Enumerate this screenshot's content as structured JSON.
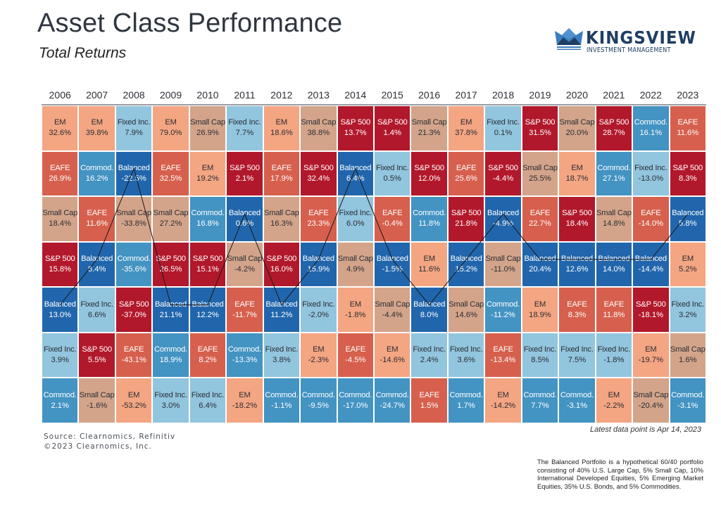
{
  "header": {
    "title": "Asset Class Performance",
    "subtitle": "Total Returns"
  },
  "logo": {
    "name": "KINGSVIEW",
    "tagline": "INVESTMENT MANAGEMENT",
    "icon": "crown-icon",
    "colors": {
      "light": "#3b7dbf",
      "dark": "#1f3e63"
    }
  },
  "colors": {
    "EM": "#f4a582",
    "EAFE": "#d6604d",
    "Small Cap": "#d3a48a",
    "S&P 500": "#b2182b",
    "Balanced": "#2166ac",
    "Fixed Inc.": "#92c5de",
    "Commod.": "#4393c3"
  },
  "dark_text_classes": [
    "EAFE",
    "S&P 500",
    "Balanced",
    "Commod."
  ],
  "chart_data": {
    "type": "table",
    "title": "Asset Class Performance",
    "subtitle": "Total Returns",
    "years": [
      "2006",
      "2007",
      "2008",
      "2009",
      "2010",
      "2011",
      "2012",
      "2013",
      "2014",
      "2015",
      "2016",
      "2017",
      "2018",
      "2019",
      "2020",
      "2021",
      "2022",
      "2023"
    ],
    "rank_order": "descending return, top row = best",
    "columns": [
      [
        [
          "EM",
          "32.6%"
        ],
        [
          "EAFE",
          "26.9%"
        ],
        [
          "Small Cap",
          "18.4%"
        ],
        [
          "S&P 500",
          "15.8%"
        ],
        [
          "Balanced",
          "13.0%"
        ],
        [
          "Fixed Inc.",
          "3.9%"
        ],
        [
          "Commod.",
          "2.1%"
        ]
      ],
      [
        [
          "EM",
          "39.8%"
        ],
        [
          "Commod.",
          "16.2%"
        ],
        [
          "EAFE",
          "11.6%"
        ],
        [
          "Balanced",
          "8.4%"
        ],
        [
          "Fixed Inc.",
          "6.6%"
        ],
        [
          "S&P 500",
          "5.5%"
        ],
        [
          "Small Cap",
          "-1.6%"
        ]
      ],
      [
        [
          "Fixed Inc.",
          "7.9%"
        ],
        [
          "Balanced",
          "-22.5%"
        ],
        [
          "Small Cap",
          "-33.8%"
        ],
        [
          "Commod.",
          "-35.6%"
        ],
        [
          "S&P 500",
          "-37.0%"
        ],
        [
          "EAFE",
          "-43.1%"
        ],
        [
          "EM",
          "-53.2%"
        ]
      ],
      [
        [
          "EM",
          "79.0%"
        ],
        [
          "EAFE",
          "32.5%"
        ],
        [
          "Small Cap",
          "27.2%"
        ],
        [
          "S&P 500",
          "26.5%"
        ],
        [
          "Balanced",
          "21.1%"
        ],
        [
          "Commod.",
          "18.9%"
        ],
        [
          "Fixed Inc.",
          "3.0%"
        ]
      ],
      [
        [
          "Small Cap",
          "26.9%"
        ],
        [
          "EM",
          "19.2%"
        ],
        [
          "Commod.",
          "16.8%"
        ],
        [
          "S&P 500",
          "15.1%"
        ],
        [
          "Balanced",
          "12.2%"
        ],
        [
          "EAFE",
          "8.2%"
        ],
        [
          "Fixed Inc.",
          "6.4%"
        ]
      ],
      [
        [
          "Fixed Inc.",
          "7.7%"
        ],
        [
          "S&P 500",
          "2.1%"
        ],
        [
          "Balanced",
          "0.6%"
        ],
        [
          "Small Cap",
          "-4.2%"
        ],
        [
          "EAFE",
          "-11.7%"
        ],
        [
          "Commod.",
          "-13.3%"
        ],
        [
          "EM",
          "-18.2%"
        ]
      ],
      [
        [
          "EM",
          "18.6%"
        ],
        [
          "EAFE",
          "17.9%"
        ],
        [
          "Small Cap",
          "16.3%"
        ],
        [
          "S&P 500",
          "16.0%"
        ],
        [
          "Balanced",
          "11.2%"
        ],
        [
          "Fixed Inc.",
          "3.8%"
        ],
        [
          "Commod.",
          "-1.1%"
        ]
      ],
      [
        [
          "Small Cap",
          "38.8%"
        ],
        [
          "S&P 500",
          "32.4%"
        ],
        [
          "EAFE",
          "23.3%"
        ],
        [
          "Balanced",
          "15.9%"
        ],
        [
          "Fixed Inc.",
          "-2.0%"
        ],
        [
          "EM",
          "-2.3%"
        ],
        [
          "Commod.",
          "-9.5%"
        ]
      ],
      [
        [
          "S&P 500",
          "13.7%"
        ],
        [
          "Balanced",
          "6.4%"
        ],
        [
          "Fixed Inc.",
          "6.0%"
        ],
        [
          "Small Cap",
          "4.9%"
        ],
        [
          "EM",
          "-1.8%"
        ],
        [
          "EAFE",
          "-4.5%"
        ],
        [
          "Commod.",
          "-17.0%"
        ]
      ],
      [
        [
          "S&P 500",
          "1.4%"
        ],
        [
          "Fixed Inc.",
          "0.5%"
        ],
        [
          "EAFE",
          "-0.4%"
        ],
        [
          "Balanced",
          "-1.5%"
        ],
        [
          "Small Cap",
          "-4.4%"
        ],
        [
          "EM",
          "-14.6%"
        ],
        [
          "Commod.",
          "-24.7%"
        ]
      ],
      [
        [
          "Small Cap",
          "21.3%"
        ],
        [
          "S&P 500",
          "12.0%"
        ],
        [
          "Commod.",
          "11.8%"
        ],
        [
          "EM",
          "11.6%"
        ],
        [
          "Balanced",
          "8.0%"
        ],
        [
          "Fixed Inc.",
          "2.4%"
        ],
        [
          "EAFE",
          "1.5%"
        ]
      ],
      [
        [
          "EM",
          "37.8%"
        ],
        [
          "EAFE",
          "25.6%"
        ],
        [
          "S&P 500",
          "21.8%"
        ],
        [
          "Balanced",
          "15.2%"
        ],
        [
          "Small Cap",
          "14.6%"
        ],
        [
          "Fixed Inc.",
          "3.6%"
        ],
        [
          "Commod.",
          "1.7%"
        ]
      ],
      [
        [
          "Fixed Inc.",
          "0.1%"
        ],
        [
          "S&P 500",
          "-4.4%"
        ],
        [
          "Balanced",
          "-4.9%"
        ],
        [
          "Small Cap",
          "-11.0%"
        ],
        [
          "Commod.",
          "-11.2%"
        ],
        [
          "EAFE",
          "-13.4%"
        ],
        [
          "EM",
          "-14.2%"
        ]
      ],
      [
        [
          "S&P 500",
          "31.5%"
        ],
        [
          "Small Cap",
          "25.5%"
        ],
        [
          "EAFE",
          "22.7%"
        ],
        [
          "Balanced",
          "20.4%"
        ],
        [
          "EM",
          "18.9%"
        ],
        [
          "Fixed Inc.",
          "8.5%"
        ],
        [
          "Commod.",
          "7.7%"
        ]
      ],
      [
        [
          "Small Cap",
          "20.0%"
        ],
        [
          "EM",
          "18.7%"
        ],
        [
          "S&P 500",
          "18.4%"
        ],
        [
          "Balanced",
          "12.6%"
        ],
        [
          "EAFE",
          "8.3%"
        ],
        [
          "Fixed Inc.",
          "7.5%"
        ],
        [
          "Commod.",
          "-3.1%"
        ]
      ],
      [
        [
          "S&P 500",
          "28.7%"
        ],
        [
          "Commod.",
          "27.1%"
        ],
        [
          "Small Cap",
          "14.8%"
        ],
        [
          "Balanced",
          "14.0%"
        ],
        [
          "EAFE",
          "11.8%"
        ],
        [
          "Fixed Inc.",
          "-1.8%"
        ],
        [
          "EM",
          "-2.2%"
        ]
      ],
      [
        [
          "Commod.",
          "16.1%"
        ],
        [
          "Fixed Inc.",
          "-13.0%"
        ],
        [
          "EAFE",
          "-14.0%"
        ],
        [
          "Balanced",
          "-14.4%"
        ],
        [
          "S&P 500",
          "-18.1%"
        ],
        [
          "EM",
          "-19.7%"
        ],
        [
          "Small Cap",
          "-20.4%"
        ]
      ],
      [
        [
          "EAFE",
          "11.6%"
        ],
        [
          "S&P 500",
          "8.3%"
        ],
        [
          "Balanced",
          "5.8%"
        ],
        [
          "EM",
          "5.2%"
        ],
        [
          "Fixed Inc.",
          "3.2%"
        ],
        [
          "Small Cap",
          "1.6%"
        ],
        [
          "Commod.",
          "-3.1%"
        ]
      ]
    ],
    "overlay_line": "connects the Balanced cell in each year"
  },
  "footer": {
    "source": "Source: Clearnomics, Refinitiv",
    "copyright": "©2023 Clearnomics, Inc.",
    "latest": "Latest data point is Apr 14, 2023",
    "note": "The Balanced Portfolio is a hypothetical 60/40 portfolio consisting of 40% U.S. Large Cap, 5% Small Cap, 10% International Developed Equities, 5% Emerging Market Equities, 35% U.S. Bonds, and 5% Commodities."
  }
}
